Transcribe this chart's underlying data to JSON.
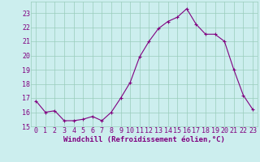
{
  "x": [
    0,
    1,
    2,
    3,
    4,
    5,
    6,
    7,
    8,
    9,
    10,
    11,
    12,
    13,
    14,
    15,
    16,
    17,
    18,
    19,
    20,
    21,
    22,
    23
  ],
  "y": [
    16.8,
    16.0,
    16.1,
    15.4,
    15.4,
    15.5,
    15.7,
    15.4,
    16.0,
    17.0,
    18.1,
    19.9,
    21.0,
    21.9,
    22.4,
    22.7,
    23.3,
    22.2,
    21.5,
    21.5,
    21.0,
    19.0,
    17.2,
    16.2
  ],
  "line_color": "#800080",
  "marker": "+",
  "marker_size": 3,
  "background_color": "#bbeebb",
  "plot_bg_color": "#cceeee",
  "grid_color": "#99ccbb",
  "xlabel": "Windchill (Refroidissement éolien,°C)",
  "ylim": [
    15,
    23.8
  ],
  "xlim": [
    -0.5,
    23.5
  ],
  "yticks": [
    15,
    16,
    17,
    18,
    19,
    20,
    21,
    22,
    23
  ],
  "xticks": [
    0,
    1,
    2,
    3,
    4,
    5,
    6,
    7,
    8,
    9,
    10,
    11,
    12,
    13,
    14,
    15,
    16,
    17,
    18,
    19,
    20,
    21,
    22,
    23
  ],
  "tick_color": "#800080",
  "label_color": "#800080",
  "font_size_xlabel": 6.5,
  "font_size_ticks": 6.0,
  "linewidth": 0.8,
  "markeredgewidth": 0.8
}
